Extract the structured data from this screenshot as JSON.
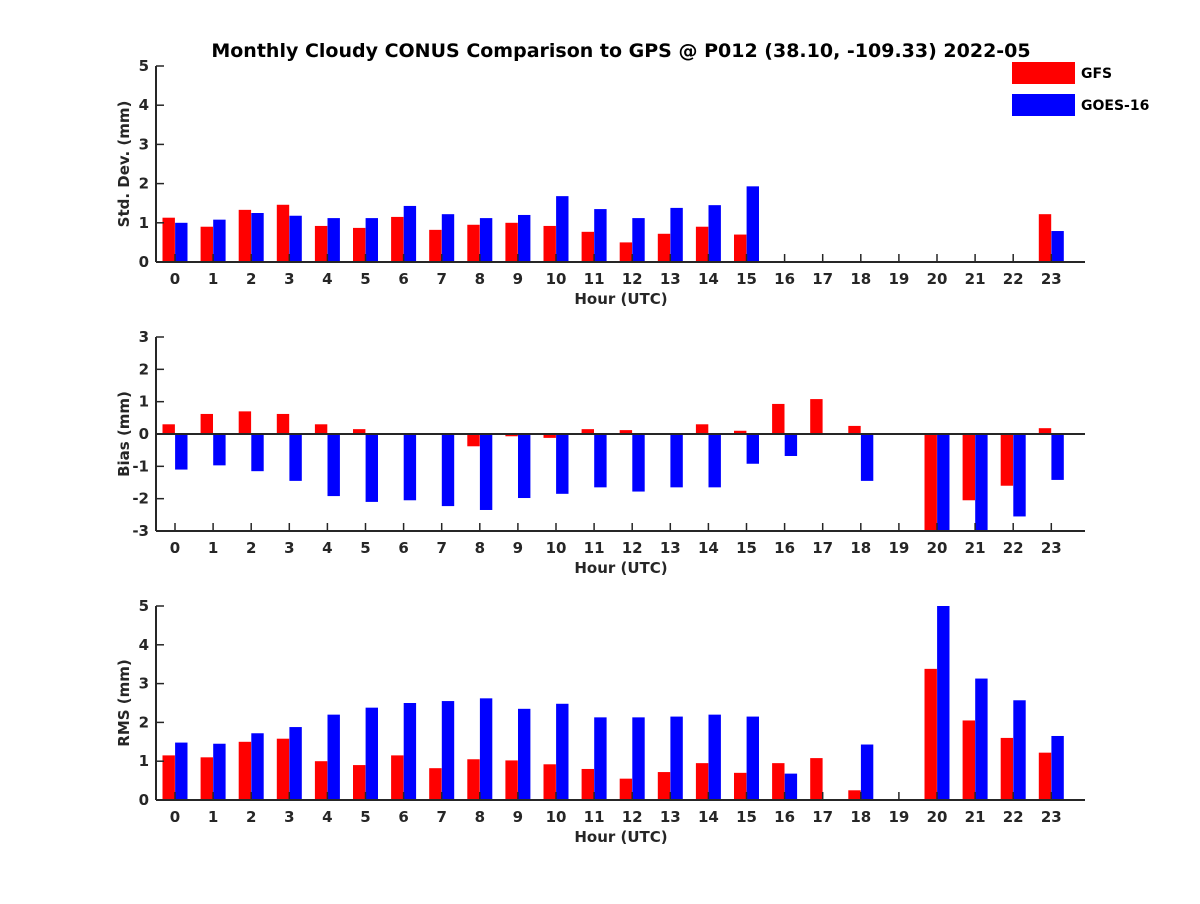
{
  "title": "Monthly Cloudy CONUS Comparison to GPS @ P012 (38.10, -109.33) 2022-05",
  "legend": [
    {
      "name": "GFS",
      "color": "#ff0000"
    },
    {
      "name": "GOES-16",
      "color": "#0000ff"
    }
  ],
  "chart_data": [
    {
      "type": "bar",
      "xlabel": "Hour (UTC)",
      "ylabel": "Std. Dev. (mm)",
      "ylim": [
        0,
        5
      ],
      "yticks": [
        0,
        1,
        2,
        3,
        4,
        5
      ],
      "categories": [
        "0",
        "1",
        "2",
        "3",
        "4",
        "5",
        "6",
        "7",
        "8",
        "9",
        "10",
        "11",
        "12",
        "13",
        "14",
        "15",
        "16",
        "17",
        "18",
        "19",
        "20",
        "21",
        "22",
        "23"
      ],
      "series": [
        {
          "name": "GFS",
          "color": "#ff0000",
          "values": [
            1.13,
            0.9,
            1.33,
            1.46,
            0.92,
            0.87,
            1.15,
            0.82,
            0.95,
            1.0,
            0.92,
            0.77,
            0.5,
            0.72,
            0.9,
            0.7,
            null,
            null,
            null,
            null,
            null,
            null,
            null,
            1.22
          ]
        },
        {
          "name": "GOES-16",
          "color": "#0000ff",
          "values": [
            1.0,
            1.08,
            1.25,
            1.18,
            1.12,
            1.12,
            1.43,
            1.22,
            1.12,
            1.2,
            1.68,
            1.35,
            1.12,
            1.38,
            1.45,
            1.93,
            null,
            null,
            null,
            null,
            null,
            null,
            null,
            0.79
          ]
        }
      ]
    },
    {
      "type": "bar",
      "xlabel": "Hour (UTC)",
      "ylabel": "Bias (mm)",
      "ylim": [
        -3,
        3
      ],
      "yticks": [
        -3,
        -2,
        -1,
        0,
        1,
        2,
        3
      ],
      "zero_line": true,
      "categories": [
        "0",
        "1",
        "2",
        "3",
        "4",
        "5",
        "6",
        "7",
        "8",
        "9",
        "10",
        "11",
        "12",
        "13",
        "14",
        "15",
        "16",
        "17",
        "18",
        "19",
        "20",
        "21",
        "22",
        "23"
      ],
      "series": [
        {
          "name": "GFS",
          "color": "#ff0000",
          "values": [
            0.3,
            0.62,
            0.7,
            0.62,
            0.3,
            0.15,
            0.02,
            null,
            -0.38,
            -0.07,
            -0.12,
            0.15,
            0.12,
            null,
            0.3,
            0.1,
            0.93,
            1.08,
            0.25,
            null,
            -3.0,
            -2.05,
            -1.6,
            0.18
          ]
        },
        {
          "name": "GOES-16",
          "color": "#0000ff",
          "values": [
            -1.1,
            -0.97,
            -1.15,
            -1.45,
            -1.92,
            -2.1,
            -2.05,
            -2.23,
            -2.35,
            -1.98,
            -1.85,
            -1.65,
            -1.78,
            -1.65,
            -1.65,
            -0.92,
            -0.68,
            null,
            -1.45,
            null,
            -3.0,
            -3.0,
            -2.55,
            -1.42
          ]
        }
      ]
    },
    {
      "type": "bar",
      "xlabel": "Hour (UTC)",
      "ylabel": "RMS (mm)",
      "ylim": [
        0,
        5
      ],
      "yticks": [
        0,
        1,
        2,
        3,
        4,
        5
      ],
      "categories": [
        "0",
        "1",
        "2",
        "3",
        "4",
        "5",
        "6",
        "7",
        "8",
        "9",
        "10",
        "11",
        "12",
        "13",
        "14",
        "15",
        "16",
        "17",
        "18",
        "19",
        "20",
        "21",
        "22",
        "23"
      ],
      "series": [
        {
          "name": "GFS",
          "color": "#ff0000",
          "values": [
            1.15,
            1.1,
            1.5,
            1.58,
            1.0,
            0.9,
            1.15,
            0.82,
            1.05,
            1.02,
            0.92,
            0.8,
            0.55,
            0.72,
            0.95,
            0.7,
            0.95,
            1.08,
            0.25,
            null,
            3.38,
            2.05,
            1.6,
            1.22
          ]
        },
        {
          "name": "GOES-16",
          "color": "#0000ff",
          "values": [
            1.48,
            1.45,
            1.72,
            1.88,
            2.2,
            2.38,
            2.5,
            2.55,
            2.62,
            2.35,
            2.48,
            2.13,
            2.13,
            2.15,
            2.2,
            2.15,
            0.68,
            null,
            1.43,
            null,
            5.0,
            3.13,
            2.57,
            1.65
          ]
        }
      ]
    }
  ]
}
